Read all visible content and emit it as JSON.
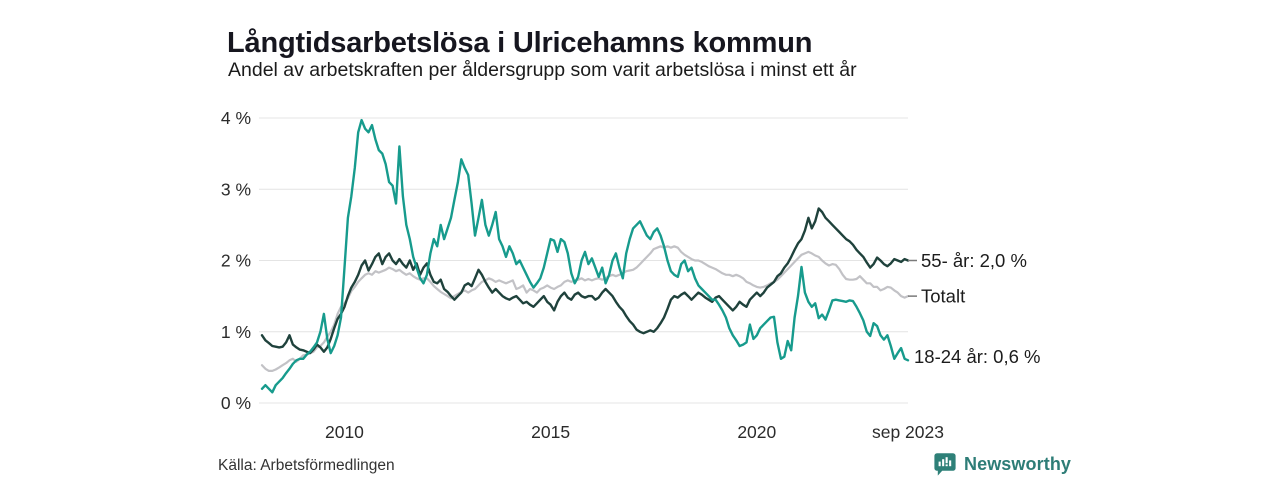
{
  "footer": {
    "source": "Källa: Arbetsförmedlingen",
    "brand": "Newsworthy"
  },
  "colors": {
    "background": "#ffffff",
    "title_text": "#16161f",
    "tick_text": "#2b2b2b",
    "grid": "#e4e4e4",
    "series_18_24": "#179b8d",
    "series_55": "#1f423c",
    "series_total": "#c2c2c6",
    "label_dash": "#7a7a7a",
    "brand_teal": "#2e8078"
  },
  "chart_data": {
    "type": "line",
    "title": "Långtidsarbetslösa i Ulricehamns kommun",
    "subtitle": "Andel av arbetskraften per åldersgrupp som varit arbetslösa i minst ett år",
    "x_unit": "month",
    "x_start": "2008-01",
    "x_end": "2023-09",
    "ylim": [
      0,
      4
    ],
    "grid": "horizontal",
    "legend_position": "right-end-labels",
    "y_ticks": [
      {
        "v": 0,
        "label": "0 %"
      },
      {
        "v": 1,
        "label": "1 %"
      },
      {
        "v": 2,
        "label": "2 %"
      },
      {
        "v": 3,
        "label": "3 %"
      },
      {
        "v": 4,
        "label": "4 %"
      }
    ],
    "x_ticks": [
      {
        "index": 24,
        "label": "2010"
      },
      {
        "index": 84,
        "label": "2015"
      },
      {
        "index": 144,
        "label": "2020"
      },
      {
        "index": 188,
        "label": "sep 2023"
      }
    ],
    "series": [
      {
        "name": "Totalt",
        "label": "Totalt",
        "color": "#c2c2c6",
        "width": 2.2,
        "dash": true,
        "label_dy": 0,
        "values": [
          0.53,
          0.48,
          0.45,
          0.45,
          0.47,
          0.5,
          0.53,
          0.56,
          0.6,
          0.62,
          0.58,
          0.62,
          0.67,
          0.68,
          0.7,
          0.72,
          0.78,
          0.8,
          0.85,
          0.93,
          1.0,
          1.1,
          1.25,
          1.35,
          1.4,
          1.47,
          1.57,
          1.63,
          1.7,
          1.75,
          1.8,
          1.82,
          1.8,
          1.85,
          1.83,
          1.85,
          1.87,
          1.9,
          1.88,
          1.85,
          1.87,
          1.83,
          1.8,
          1.82,
          1.78,
          1.75,
          1.73,
          1.75,
          1.75,
          1.7,
          1.64,
          1.6,
          1.56,
          1.53,
          1.5,
          1.47,
          1.5,
          1.53,
          1.56,
          1.58,
          1.55,
          1.58,
          1.6,
          1.65,
          1.7,
          1.72,
          1.75,
          1.73,
          1.7,
          1.72,
          1.7,
          1.68,
          1.7,
          1.72,
          1.6,
          1.62,
          1.65,
          1.55,
          1.6,
          1.58,
          1.55,
          1.6,
          1.62,
          1.65,
          1.62,
          1.6,
          1.63,
          1.65,
          1.7,
          1.72,
          1.7,
          1.72,
          1.73,
          1.75,
          1.72,
          1.74,
          1.72,
          1.74,
          1.75,
          1.73,
          1.75,
          1.78,
          1.8,
          1.78,
          1.8,
          1.82,
          1.85,
          1.86,
          1.87,
          1.9,
          1.95,
          2.0,
          2.05,
          2.1,
          2.16,
          2.18,
          2.2,
          2.18,
          2.2,
          2.18,
          2.2,
          2.18,
          2.12,
          2.08,
          2.05,
          2.02,
          2.0,
          2.0,
          1.98,
          1.95,
          1.92,
          1.9,
          1.88,
          1.85,
          1.82,
          1.8,
          1.8,
          1.78,
          1.8,
          1.78,
          1.75,
          1.7,
          1.68,
          1.65,
          1.63,
          1.62,
          1.63,
          1.65,
          1.68,
          1.7,
          1.73,
          1.78,
          1.83,
          1.88,
          1.93,
          1.98,
          2.03,
          2.08,
          2.1,
          2.12,
          2.1,
          2.07,
          2.05,
          2.0,
          1.96,
          1.93,
          1.95,
          1.94,
          1.88,
          1.8,
          1.74,
          1.73,
          1.73,
          1.74,
          1.78,
          1.73,
          1.68,
          1.68,
          1.63,
          1.63,
          1.58,
          1.6,
          1.63,
          1.62,
          1.58,
          1.55,
          1.5,
          1.48,
          1.5
        ]
      },
      {
        "name": "55- år",
        "label": "55- år: 2,0 %",
        "color": "#1f423c",
        "width": 2.4,
        "dash": true,
        "label_dy": 0,
        "values": [
          0.95,
          0.88,
          0.84,
          0.8,
          0.79,
          0.78,
          0.79,
          0.85,
          0.95,
          0.82,
          0.78,
          0.75,
          0.74,
          0.72,
          0.7,
          0.75,
          0.82,
          0.78,
          0.72,
          0.78,
          0.9,
          1.05,
          1.18,
          1.25,
          1.35,
          1.5,
          1.62,
          1.7,
          1.8,
          1.93,
          2.0,
          1.86,
          1.95,
          2.05,
          2.1,
          1.95,
          2.05,
          2.1,
          2.0,
          1.95,
          2.02,
          1.95,
          1.9,
          2.0,
          1.87,
          1.96,
          1.8,
          1.9,
          1.96,
          1.8,
          1.7,
          1.68,
          1.73,
          1.6,
          1.56,
          1.5,
          1.45,
          1.5,
          1.55,
          1.65,
          1.68,
          1.64,
          1.75,
          1.87,
          1.8,
          1.7,
          1.62,
          1.55,
          1.6,
          1.55,
          1.5,
          1.47,
          1.45,
          1.48,
          1.5,
          1.45,
          1.4,
          1.42,
          1.38,
          1.35,
          1.4,
          1.45,
          1.5,
          1.42,
          1.38,
          1.3,
          1.42,
          1.5,
          1.55,
          1.48,
          1.45,
          1.52,
          1.55,
          1.5,
          1.48,
          1.5,
          1.5,
          1.45,
          1.48,
          1.55,
          1.6,
          1.55,
          1.5,
          1.42,
          1.35,
          1.3,
          1.22,
          1.15,
          1.1,
          1.03,
          1.0,
          0.98,
          1.0,
          1.02,
          1.0,
          1.05,
          1.12,
          1.2,
          1.32,
          1.45,
          1.5,
          1.48,
          1.52,
          1.55,
          1.5,
          1.45,
          1.5,
          1.55,
          1.52,
          1.48,
          1.45,
          1.42,
          1.48,
          1.5,
          1.45,
          1.4,
          1.35,
          1.3,
          1.35,
          1.42,
          1.38,
          1.35,
          1.45,
          1.5,
          1.55,
          1.5,
          1.55,
          1.62,
          1.66,
          1.7,
          1.78,
          1.82,
          1.9,
          1.96,
          2.05,
          2.15,
          2.24,
          2.3,
          2.42,
          2.6,
          2.45,
          2.55,
          2.73,
          2.68,
          2.6,
          2.55,
          2.5,
          2.45,
          2.4,
          2.35,
          2.3,
          2.27,
          2.22,
          2.15,
          2.1,
          2.05,
          1.97,
          1.9,
          1.95,
          2.04,
          2.0,
          1.95,
          1.92,
          1.96,
          2.02,
          2.0,
          1.98,
          2.02,
          2.0
        ]
      },
      {
        "name": "18-24 år",
        "label": "18-24 år: 0,6 %",
        "color": "#179b8d",
        "width": 2.4,
        "dash": false,
        "label_dy": -4,
        "values": [
          0.2,
          0.25,
          0.2,
          0.15,
          0.25,
          0.3,
          0.35,
          0.42,
          0.48,
          0.55,
          0.6,
          0.62,
          0.62,
          0.68,
          0.72,
          0.78,
          0.85,
          1.0,
          1.25,
          0.9,
          0.7,
          0.8,
          0.95,
          1.2,
          1.9,
          2.6,
          2.9,
          3.3,
          3.8,
          3.97,
          3.85,
          3.8,
          3.9,
          3.7,
          3.55,
          3.5,
          3.35,
          3.1,
          3.05,
          2.8,
          3.6,
          2.9,
          2.5,
          2.3,
          2.05,
          1.9,
          1.75,
          1.68,
          1.8,
          2.1,
          2.3,
          2.2,
          2.5,
          2.3,
          2.45,
          2.6,
          2.85,
          3.1,
          3.42,
          3.3,
          3.2,
          2.8,
          2.35,
          2.6,
          2.85,
          2.5,
          2.35,
          2.5,
          2.68,
          2.3,
          2.2,
          2.05,
          2.2,
          2.1,
          1.95,
          2.0,
          1.9,
          1.8,
          1.7,
          1.62,
          1.68,
          1.75,
          1.9,
          2.1,
          2.3,
          2.28,
          2.12,
          2.3,
          2.26,
          2.1,
          1.82,
          1.68,
          1.77,
          2.0,
          2.12,
          1.95,
          2.03,
          1.9,
          1.77,
          1.9,
          1.68,
          1.8,
          2.0,
          2.1,
          1.9,
          1.75,
          2.1,
          2.3,
          2.45,
          2.5,
          2.55,
          2.45,
          2.35,
          2.3,
          2.4,
          2.45,
          2.35,
          2.2,
          2.0,
          1.85,
          1.8,
          1.77,
          1.95,
          2.0,
          1.85,
          1.9,
          1.75,
          1.65,
          1.6,
          1.55,
          1.5,
          1.45,
          1.45,
          1.38,
          1.3,
          1.2,
          1.05,
          0.95,
          0.88,
          0.8,
          0.82,
          0.85,
          1.1,
          0.9,
          0.95,
          1.05,
          1.1,
          1.15,
          1.2,
          1.21,
          0.85,
          0.62,
          0.65,
          0.87,
          0.74,
          1.2,
          1.5,
          1.91,
          1.55,
          1.42,
          1.35,
          1.4,
          1.19,
          1.24,
          1.17,
          1.3,
          1.44,
          1.45,
          1.44,
          1.43,
          1.42,
          1.44,
          1.43,
          1.35,
          1.26,
          1.16,
          1.0,
          0.94,
          1.12,
          1.08,
          0.95,
          0.89,
          0.95,
          0.8,
          0.62,
          0.7,
          0.77,
          0.62,
          0.6
        ]
      }
    ]
  }
}
